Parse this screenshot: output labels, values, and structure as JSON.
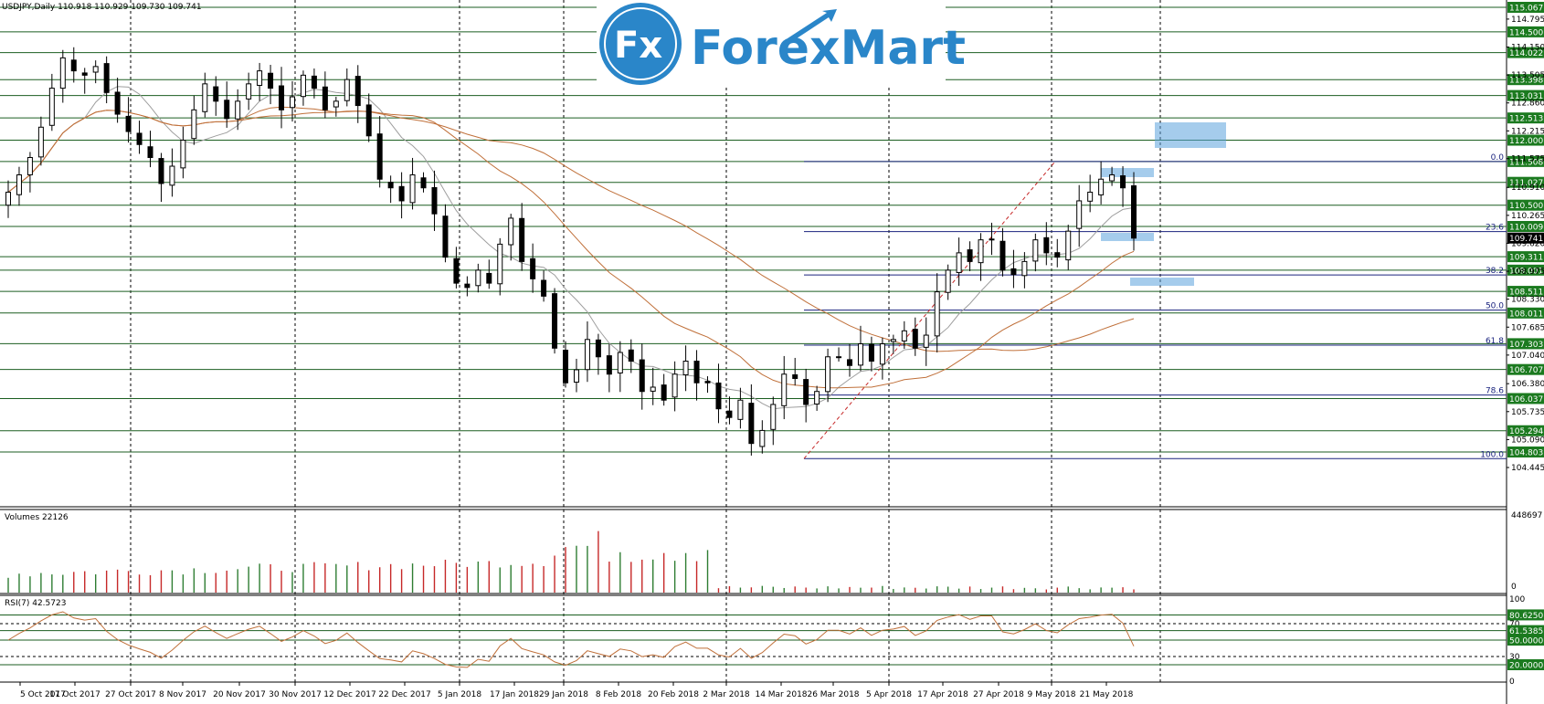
{
  "header": {
    "symbol_label": "USDJPY,Daily  110.918 110.929 109.730 109.741",
    "volumes_label": "Volumes 22126",
    "rsi_label": "RSI(7) 42.5723"
  },
  "logo": {
    "fx": "Fx",
    "brand": "ForexMart"
  },
  "colors": {
    "level_line": "#1b5e20",
    "level_badge": "#1b7a1f",
    "fib_line": "#1a237e",
    "ma_fast": "#9e9e9e",
    "ma_slow": "#c0703a",
    "rsi_line": "#c0703a",
    "volume_up": "#2e7d32",
    "volume_down": "#c62828",
    "zone": "#5ba3dd"
  },
  "price_axis": {
    "ticks": [
      "114.795",
      "114.150",
      "113.505",
      "112.860",
      "112.215",
      "111.575",
      "110.910",
      "110.265",
      "109.620",
      "108.975",
      "108.330",
      "107.685",
      "107.040",
      "106.380",
      "105.735",
      "105.090",
      "104.445"
    ],
    "current_price": "109.741"
  },
  "levels": [
    "115.067",
    "114.500",
    "114.022",
    "113.398",
    "113.031",
    "112.513",
    "112.000",
    "111.508",
    "111.027",
    "110.500",
    "110.009",
    "109.311",
    "109.001",
    "108.511",
    "108.011",
    "107.303",
    "106.707",
    "106.037",
    "105.294",
    "104.803"
  ],
  "fibonacci": {
    "labels": [
      "0.0",
      "23.6",
      "38.2",
      "50.0",
      "61.8",
      "78.6",
      "100.0"
    ],
    "high": 111.508,
    "low": 104.65
  },
  "volume_axis": {
    "max_label": "448697",
    "zero_label": "0"
  },
  "rsi_axis": {
    "ticks": [
      "100",
      "70",
      "30",
      "0"
    ],
    "levels": [
      "80.6250",
      "61.5385",
      "50.0000",
      "20.0000"
    ]
  },
  "chart_data": {
    "type": "candlestick",
    "title": "USDJPY,Daily  110.918 110.929 109.730 109.741",
    "x_date_labels": [
      "5 Oct 2017",
      "17 Oct 2017",
      "27 Oct 2017",
      "8 Nov 2017",
      "20 Nov 2017",
      "30 Nov 2017",
      "12 Dec 2017",
      "22 Dec 2017",
      "5 Jan 2018",
      "17 Jan 2018",
      "29 Jan 2018",
      "8 Feb 2018",
      "20 Feb 2018",
      "2 Mar 2018",
      "14 Mar 2018",
      "26 Mar 2018",
      "5 Apr 2018",
      "17 Apr 2018",
      "27 Apr 2018",
      "9 May 2018",
      "21 May 2018"
    ],
    "ylim": [
      104.445,
      115.2
    ],
    "close_path": [
      110.8,
      111.2,
      111.6,
      112.3,
      113.2,
      113.9,
      113.6,
      113.5,
      113.7,
      113.1,
      112.6,
      112.2,
      111.9,
      111.6,
      111.0,
      111.4,
      112.0,
      112.7,
      113.3,
      112.9,
      112.5,
      112.9,
      113.3,
      113.6,
      113.2,
      112.7,
      113.0,
      113.5,
      113.2,
      112.7,
      112.9,
      113.4,
      112.8,
      112.1,
      111.1,
      110.9,
      110.6,
      111.2,
      110.9,
      110.3,
      109.3,
      108.7,
      108.6,
      109.0,
      108.7,
      109.6,
      110.2,
      109.2,
      108.8,
      108.4,
      107.2,
      106.4,
      106.7,
      107.4,
      107.0,
      106.6,
      107.1,
      106.9,
      106.2,
      106.3,
      106.0,
      106.6,
      106.9,
      106.4,
      106.4,
      105.8,
      105.6,
      106.0,
      105.0,
      105.3,
      105.9,
      106.6,
      106.5,
      105.9,
      106.2,
      107.0,
      107.0,
      106.8,
      107.3,
      106.9,
      107.3,
      107.4,
      107.6,
      107.2,
      107.5,
      108.5,
      109.0,
      109.4,
      109.2,
      109.7,
      109.7,
      109.0,
      108.9,
      109.2,
      109.7,
      109.4,
      109.3,
      109.9,
      110.6,
      110.8,
      111.1,
      111.2,
      110.9,
      109.74
    ],
    "volume_max": 448697,
    "rsi_last": 42.5723
  }
}
